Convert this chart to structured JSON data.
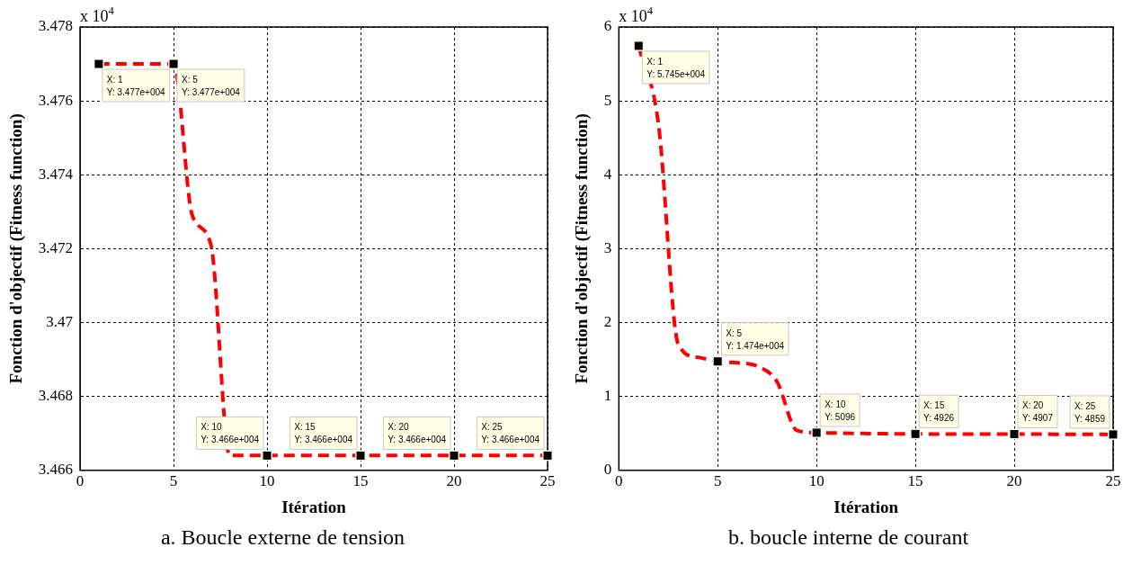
{
  "chart_data": [
    {
      "type": "line",
      "xlabel": "Itération",
      "ylabel": "Fonction d'objectif (Fitness function)",
      "x": [
        1,
        2,
        3,
        4,
        5,
        6,
        7,
        8,
        9,
        10,
        11,
        12,
        13,
        14,
        15,
        16,
        17,
        18,
        19,
        20,
        21,
        22,
        23,
        24,
        25
      ],
      "series": [
        {
          "color": "#ff0000",
          "values": [
            3.477,
            3.477,
            3.477,
            3.477,
            3.477,
            3.4729,
            3.4721,
            3.4664,
            3.4664,
            3.4664,
            3.4664,
            3.4664,
            3.4664,
            3.4664,
            3.4664,
            3.4664,
            3.4664,
            3.4664,
            3.4664,
            3.4664,
            3.4664,
            3.4664,
            3.4664,
            3.4664,
            3.4664
          ]
        }
      ],
      "line_style": "dashed",
      "grid": true,
      "xlim": [
        0,
        25
      ],
      "xticks": [
        0,
        5,
        10,
        15,
        20,
        25
      ],
      "ylim": [
        3.466,
        3.478
      ],
      "yticks": [
        3.466,
        3.468,
        3.47,
        3.472,
        3.474,
        3.476,
        3.478
      ],
      "annotations": [
        "x 10$^{4}$",
        "a. Boucle externe de tension",
        {
          "text": "X: 1\nY: 3.477e+004",
          "x": 1,
          "y": 3.477
        },
        {
          "text": "X: 5\nY: 3.477e+004",
          "x": 5,
          "y": 3.477
        },
        {
          "text": "X: 10\nY: 3.466e+004",
          "x": 10,
          "y": 3.4664
        },
        {
          "text": "X: 15\nY: 3.466e+004",
          "x": 15,
          "y": 3.4664
        },
        {
          "text": "X: 20\nY: 3.466e+004",
          "x": 20,
          "y": 3.4664
        },
        {
          "text": "X: 25\nY: 3.466e+004",
          "x": 25,
          "y": 3.4664
        }
      ]
    },
    {
      "type": "line",
      "xlabel": "Itération",
      "ylabel": "Fonction d'objectif (Fitness function)",
      "x": [
        1,
        2,
        3,
        4,
        5,
        6,
        7,
        8,
        9,
        10,
        11,
        12,
        13,
        14,
        15,
        16,
        17,
        18,
        19,
        20,
        21,
        22,
        23,
        24,
        25
      ],
      "series": [
        {
          "color": "#ff0000",
          "values": [
            5.745,
            4.69,
            1.71,
            1.53,
            1.474,
            1.455,
            1.41,
            1.2,
            0.54,
            0.5096,
            0.505,
            0.5,
            0.497,
            0.494,
            0.4926,
            0.492,
            0.4915,
            0.491,
            0.491,
            0.4907,
            0.49,
            0.489,
            0.488,
            0.487,
            0.4859
          ]
        }
      ],
      "line_style": "dashed",
      "grid": true,
      "xlim": [
        0,
        25
      ],
      "xticks": [
        0,
        5,
        10,
        15,
        20,
        25
      ],
      "ylim": [
        0,
        6
      ],
      "yticks": [
        0,
        1,
        2,
        3,
        4,
        5,
        6
      ],
      "annotations": [
        "x 10$^{4}$",
        "b. boucle interne de courant",
        {
          "text": "X: 1\nY: 5.745e+004",
          "x": 1,
          "y": 5.745
        },
        {
          "text": "X: 5\nY: 1.474e+004",
          "x": 5,
          "y": 1.474
        },
        {
          "text": "X: 10\nY: 5096",
          "x": 10,
          "y": 0.5096
        },
        {
          "text": "X: 15\nY: 4926",
          "x": 15,
          "y": 0.4926
        },
        {
          "text": "X: 20\nY: 4907",
          "x": 20,
          "y": 0.4907
        },
        {
          "text": "X: 25\nY: 4859",
          "x": 25,
          "y": 0.4859
        }
      ]
    }
  ]
}
